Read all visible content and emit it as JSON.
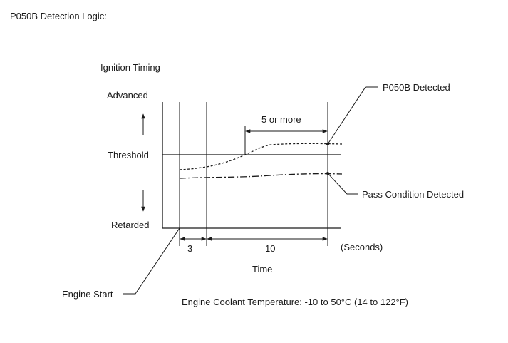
{
  "diagram": {
    "title": "P050B Detection Logic:",
    "y_axis_title": "Ignition Timing",
    "levels": {
      "advanced": "Advanced",
      "threshold": "Threshold",
      "retarded": "Retarded"
    },
    "callouts": {
      "detected": "P050B Detected",
      "pass": "Pass Condition Detected",
      "engine_start": "Engine Start"
    },
    "intervals": {
      "five_or_more": "5 or more",
      "three": "3",
      "ten": "10",
      "seconds": "(Seconds)"
    },
    "x_axis_title": "Time",
    "condition": "Engine Coolant Temperature: -10 to 50°C (14 to 122°F)"
  }
}
